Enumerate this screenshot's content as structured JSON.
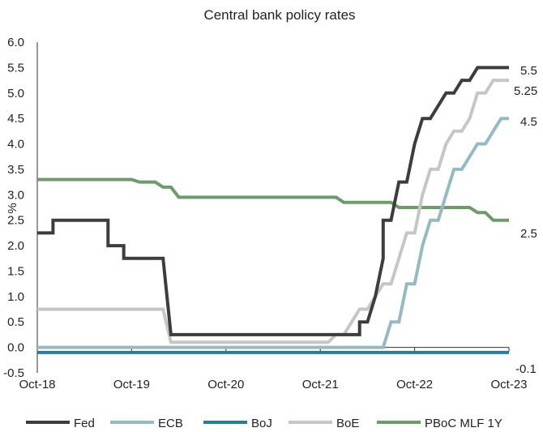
{
  "chart_data": {
    "type": "line",
    "title": "Central bank policy rates",
    "xlabel": "",
    "ylabel": "%",
    "ylim": [
      -0.5,
      6.0
    ],
    "yticks": [
      "6.0",
      "5.5",
      "5.0",
      "4.5",
      "4.0",
      "3.5",
      "3.0",
      "2.5",
      "2.0",
      "1.5",
      "1.0",
      "0.5",
      "0.0",
      "-0.5"
    ],
    "xlim": [
      "2018-10",
      "2023-10"
    ],
    "xticks": [
      "Oct-18",
      "Oct-19",
      "Oct-20",
      "Oct-21",
      "Oct-22",
      "Oct-23"
    ],
    "grid": false,
    "legend_position": "bottom",
    "series": [
      {
        "name": "Fed",
        "color": "#3d3d3d",
        "end_label": "5.5",
        "points": [
          [
            "2018-10",
            2.25
          ],
          [
            "2018-12",
            2.25
          ],
          [
            "2018-12",
            2.5
          ],
          [
            "2019-07",
            2.5
          ],
          [
            "2019-07",
            2.0
          ],
          [
            "2019-09",
            2.0
          ],
          [
            "2019-09",
            1.75
          ],
          [
            "2020-02",
            1.75
          ],
          [
            "2020-03",
            0.25
          ],
          [
            "2022-02",
            0.25
          ],
          [
            "2022-03",
            0.25
          ],
          [
            "2022-03",
            0.5
          ],
          [
            "2022-04",
            0.5
          ],
          [
            "2022-05",
            1.0
          ],
          [
            "2022-06",
            1.75
          ],
          [
            "2022-06",
            2.5
          ],
          [
            "2022-07",
            2.5
          ],
          [
            "2022-08",
            3.25
          ],
          [
            "2022-09",
            3.25
          ],
          [
            "2022-10",
            4.0
          ],
          [
            "2022-11",
            4.5
          ],
          [
            "2022-12",
            4.5
          ],
          [
            "2023-01",
            4.75
          ],
          [
            "2023-02",
            5.0
          ],
          [
            "2023-03",
            5.0
          ],
          [
            "2023-04",
            5.25
          ],
          [
            "2023-05",
            5.25
          ],
          [
            "2023-06",
            5.5
          ],
          [
            "2023-10",
            5.5
          ]
        ]
      },
      {
        "name": "ECB",
        "color": "#96b9c2",
        "end_label": "4.5",
        "points": [
          [
            "2018-10",
            0.0
          ],
          [
            "2022-06",
            0.0
          ],
          [
            "2022-07",
            0.5
          ],
          [
            "2022-08",
            0.5
          ],
          [
            "2022-09",
            1.25
          ],
          [
            "2022-10",
            1.25
          ],
          [
            "2022-11",
            2.0
          ],
          [
            "2022-12",
            2.5
          ],
          [
            "2023-01",
            2.5
          ],
          [
            "2023-02",
            3.0
          ],
          [
            "2023-03",
            3.5
          ],
          [
            "2023-04",
            3.5
          ],
          [
            "2023-05",
            3.75
          ],
          [
            "2023-06",
            4.0
          ],
          [
            "2023-07",
            4.0
          ],
          [
            "2023-08",
            4.25
          ],
          [
            "2023-09",
            4.5
          ],
          [
            "2023-10",
            4.5
          ]
        ]
      },
      {
        "name": "BoJ",
        "color": "#2a7a9e",
        "end_label": "-0.1",
        "points": [
          [
            "2018-10",
            -0.1
          ],
          [
            "2023-10",
            -0.1
          ]
        ]
      },
      {
        "name": "BoE",
        "color": "#c6c6c6",
        "end_label": "5.25",
        "points": [
          [
            "2018-10",
            0.75
          ],
          [
            "2020-02",
            0.75
          ],
          [
            "2020-03",
            0.1
          ],
          [
            "2021-11",
            0.1
          ],
          [
            "2021-12",
            0.25
          ],
          [
            "2022-01",
            0.25
          ],
          [
            "2022-02",
            0.5
          ],
          [
            "2022-03",
            0.75
          ],
          [
            "2022-04",
            0.75
          ],
          [
            "2022-05",
            1.0
          ],
          [
            "2022-06",
            1.25
          ],
          [
            "2022-07",
            1.25
          ],
          [
            "2022-08",
            1.75
          ],
          [
            "2022-09",
            2.25
          ],
          [
            "2022-10",
            2.25
          ],
          [
            "2022-11",
            3.0
          ],
          [
            "2022-12",
            3.5
          ],
          [
            "2023-01",
            3.5
          ],
          [
            "2023-02",
            4.0
          ],
          [
            "2023-03",
            4.25
          ],
          [
            "2023-04",
            4.25
          ],
          [
            "2023-05",
            4.5
          ],
          [
            "2023-06",
            5.0
          ],
          [
            "2023-07",
            5.0
          ],
          [
            "2023-08",
            5.25
          ],
          [
            "2023-10",
            5.25
          ]
        ]
      },
      {
        "name": "PBoC MLF 1Y",
        "color": "#6e9a6c",
        "end_label": "2.5",
        "points": [
          [
            "2018-10",
            3.3
          ],
          [
            "2019-10",
            3.3
          ],
          [
            "2019-11",
            3.25
          ],
          [
            "2020-01",
            3.25
          ],
          [
            "2020-02",
            3.15
          ],
          [
            "2020-03",
            3.15
          ],
          [
            "2020-04",
            2.95
          ],
          [
            "2021-12",
            2.95
          ],
          [
            "2022-01",
            2.85
          ],
          [
            "2022-07",
            2.85
          ],
          [
            "2022-08",
            2.75
          ],
          [
            "2023-05",
            2.75
          ],
          [
            "2023-06",
            2.65
          ],
          [
            "2023-07",
            2.65
          ],
          [
            "2023-08",
            2.5
          ],
          [
            "2023-10",
            2.5
          ]
        ]
      }
    ]
  }
}
